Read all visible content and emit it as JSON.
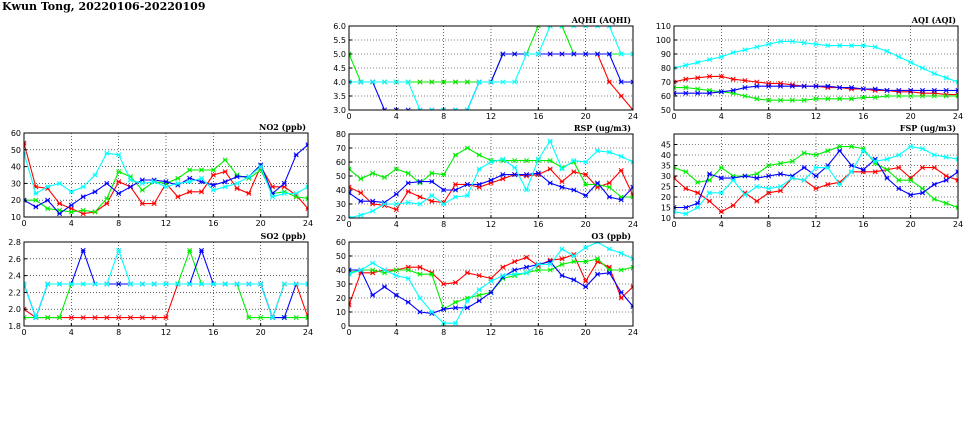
{
  "page": {
    "title": "Kwun Tong, 20220106-20220109"
  },
  "colors": {
    "series": [
      "#ff0000",
      "#00ee00",
      "#0000ff",
      "#00ffff"
    ],
    "grid": "#000000"
  },
  "chart_data": [
    {
      "id": "no2",
      "type": "line",
      "title": "NO2 (ppb)",
      "xlim": [
        0,
        24
      ],
      "ylim": [
        10,
        60
      ],
      "xticks": [
        0,
        4,
        8,
        12,
        16,
        20,
        24
      ],
      "yticks": [
        10,
        20,
        30,
        40,
        50,
        60
      ],
      "x": [
        0,
        1,
        2,
        3,
        4,
        5,
        6,
        7,
        8,
        9,
        10,
        11,
        12,
        13,
        14,
        15,
        16,
        17,
        18,
        19,
        20,
        21,
        22,
        23,
        24
      ],
      "series": [
        {
          "values": [
            54,
            28,
            27,
            18,
            15,
            12,
            13,
            18,
            31,
            28,
            18,
            18,
            30,
            22,
            25,
            25,
            35,
            37,
            27,
            24,
            40,
            28,
            28,
            23,
            15
          ]
        },
        {
          "values": [
            20,
            20,
            15,
            14,
            13,
            14,
            13,
            21,
            37,
            34,
            26,
            31,
            30,
            33,
            38,
            38,
            38,
            44,
            35,
            33,
            38,
            24,
            25,
            22,
            21
          ]
        },
        {
          "values": [
            20,
            16,
            20,
            12,
            17,
            22,
            25,
            30,
            24,
            28,
            32,
            32,
            31,
            29,
            33,
            31,
            29,
            31,
            34,
            34,
            41,
            24,
            30,
            47,
            53
          ]
        },
        {
          "values": [
            48,
            24,
            28,
            30,
            25,
            28,
            35,
            48,
            47,
            32,
            30,
            31,
            28,
            30,
            31,
            33,
            26,
            28,
            30,
            34,
            40,
            22,
            24,
            24,
            28
          ]
        }
      ]
    },
    {
      "id": "so2",
      "type": "line",
      "title": "SO2 (ppb)",
      "xlim": [
        0,
        24
      ],
      "ylim": [
        1.8,
        2.8
      ],
      "xticks": [
        0,
        4,
        8,
        12,
        16,
        20,
        24
      ],
      "yticks": [
        1.8,
        2.0,
        2.2,
        2.4,
        2.6,
        2.8
      ],
      "x": [
        0,
        1,
        2,
        3,
        4,
        5,
        6,
        7,
        8,
        9,
        10,
        11,
        12,
        13,
        14,
        15,
        16,
        17,
        18,
        19,
        20,
        21,
        22,
        23,
        24
      ],
      "series": [
        {
          "values": [
            2.0,
            1.9,
            1.9,
            1.9,
            1.9,
            1.9,
            1.9,
            1.9,
            1.9,
            1.9,
            1.9,
            1.9,
            1.9,
            2.3,
            2.3,
            2.3,
            2.3,
            2.3,
            2.3,
            2.3,
            2.3,
            1.9,
            2.3,
            2.3,
            1.9
          ]
        },
        {
          "values": [
            1.9,
            1.9,
            1.9,
            1.9,
            2.3,
            2.3,
            2.3,
            2.3,
            2.3,
            2.3,
            2.3,
            2.3,
            2.3,
            2.3,
            2.7,
            2.3,
            2.3,
            2.3,
            2.3,
            1.9,
            1.9,
            1.9,
            1.9,
            1.9,
            1.9
          ]
        },
        {
          "values": [
            2.3,
            1.9,
            2.3,
            2.3,
            2.3,
            2.7,
            2.3,
            2.3,
            2.3,
            2.3,
            2.3,
            2.3,
            2.3,
            2.3,
            2.3,
            2.7,
            2.3,
            2.3,
            2.3,
            2.3,
            2.3,
            1.9,
            1.9,
            2.3,
            2.3
          ]
        },
        {
          "values": [
            2.3,
            1.9,
            2.3,
            2.3,
            2.3,
            2.3,
            2.3,
            2.3,
            2.7,
            2.3,
            2.3,
            2.3,
            2.3,
            2.3,
            2.3,
            2.3,
            2.3,
            2.3,
            2.3,
            2.3,
            2.3,
            1.9,
            2.3,
            2.3,
            2.3
          ]
        }
      ]
    },
    {
      "id": "aqhi",
      "type": "line",
      "title": "AQHI (AQHI)",
      "xlim": [
        0,
        24
      ],
      "ylim": [
        3.0,
        6.0
      ],
      "xticks": [
        0,
        4,
        8,
        12,
        16,
        20,
        24
      ],
      "yticks": [
        3.0,
        3.5,
        4.0,
        4.5,
        5.0,
        5.5,
        6.0
      ],
      "x": [
        0,
        1,
        2,
        3,
        4,
        5,
        6,
        7,
        8,
        9,
        10,
        11,
        12,
        13,
        14,
        15,
        16,
        17,
        18,
        19,
        20,
        21,
        22,
        23,
        24
      ],
      "series": [
        {
          "values": [
            4,
            4,
            4,
            4,
            4,
            4,
            4,
            4,
            4,
            4,
            4,
            4,
            4,
            5,
            5,
            5,
            5,
            5,
            5,
            5,
            5,
            5,
            4,
            3.5,
            3
          ]
        },
        {
          "values": [
            5,
            4,
            4,
            4,
            4,
            4,
            4,
            4,
            4,
            4,
            4,
            4,
            4,
            5,
            5,
            5,
            6,
            6,
            6,
            5,
            5,
            5,
            5,
            5,
            5
          ]
        },
        {
          "values": [
            4,
            4,
            4,
            3,
            3,
            3,
            3,
            3,
            3,
            3,
            3,
            4,
            4,
            5,
            5,
            5,
            5,
            5,
            5,
            5,
            5,
            5,
            5,
            4,
            4
          ]
        },
        {
          "values": [
            4,
            4,
            4,
            4,
            4,
            4,
            3,
            3,
            3,
            3,
            3,
            4,
            4,
            4,
            4,
            5,
            5,
            6,
            6,
            6,
            6,
            6,
            6,
            5,
            5
          ]
        }
      ]
    },
    {
      "id": "rsp",
      "type": "line",
      "title": "RSP (ug/m3)",
      "xlim": [
        0,
        24
      ],
      "ylim": [
        20,
        80
      ],
      "xticks": [
        0,
        4,
        8,
        12,
        16,
        20,
        24
      ],
      "yticks": [
        20,
        30,
        40,
        50,
        60,
        70,
        80
      ],
      "x": [
        0,
        1,
        2,
        3,
        4,
        5,
        6,
        7,
        8,
        9,
        10,
        11,
        12,
        13,
        14,
        15,
        16,
        17,
        18,
        19,
        20,
        21,
        22,
        23,
        24
      ],
      "series": [
        {
          "values": [
            42,
            38,
            30,
            29,
            26,
            39,
            35,
            32,
            31,
            44,
            44,
            42,
            45,
            48,
            51,
            50,
            51,
            55,
            46,
            53,
            51,
            42,
            45,
            54,
            36
          ]
        },
        {
          "values": [
            55,
            48,
            52,
            49,
            55,
            52,
            45,
            52,
            51,
            65,
            70,
            65,
            61,
            61,
            61,
            61,
            61,
            61,
            56,
            60,
            44,
            44,
            42,
            35,
            35
          ]
        },
        {
          "values": [
            38,
            32,
            32,
            31,
            37,
            45,
            46,
            46,
            40,
            40,
            44,
            44,
            47,
            51,
            51,
            51,
            52,
            45,
            42,
            40,
            36,
            45,
            35,
            33,
            42
          ]
        },
        {
          "values": [
            20,
            22,
            25,
            30,
            30,
            31,
            30,
            36,
            30,
            35,
            36,
            55,
            60,
            62,
            56,
            40,
            62,
            75,
            55,
            61,
            60,
            68,
            67,
            64,
            60
          ]
        }
      ]
    },
    {
      "id": "o3",
      "type": "line",
      "title": "O3 (ppb)",
      "xlim": [
        0,
        24
      ],
      "ylim": [
        0,
        60
      ],
      "xticks": [
        0,
        4,
        8,
        12,
        16,
        20,
        24
      ],
      "yticks": [
        0,
        10,
        20,
        30,
        40,
        50,
        60
      ],
      "x": [
        0,
        1,
        2,
        3,
        4,
        5,
        6,
        7,
        8,
        9,
        10,
        11,
        12,
        13,
        14,
        15,
        16,
        17,
        18,
        19,
        20,
        21,
        22,
        23,
        24
      ],
      "series": [
        {
          "values": [
            15,
            38,
            38,
            40,
            40,
            42,
            42,
            38,
            30,
            31,
            38,
            36,
            34,
            42,
            46,
            49,
            43,
            47,
            48,
            51,
            32,
            46,
            42,
            20,
            28
          ]
        },
        {
          "values": [
            38,
            40,
            40,
            38,
            40,
            40,
            37,
            37,
            12,
            17,
            20,
            22,
            24,
            34,
            36,
            38,
            40,
            40,
            44,
            46,
            46,
            48,
            40,
            40,
            42
          ]
        },
        {
          "values": [
            40,
            40,
            22,
            28,
            22,
            17,
            10,
            9,
            12,
            13,
            13,
            18,
            24,
            35,
            40,
            42,
            44,
            46,
            36,
            33,
            28,
            37,
            38,
            24,
            14
          ]
        },
        {
          "values": [
            37,
            40,
            45,
            40,
            36,
            34,
            20,
            10,
            2,
            2,
            18,
            26,
            32,
            36,
            37,
            38,
            44,
            44,
            55,
            50,
            56,
            60,
            55,
            52,
            48
          ]
        }
      ]
    },
    {
      "id": "aqi",
      "type": "line",
      "title": "AQI (AQI)",
      "xlim": [
        0,
        24
      ],
      "ylim": [
        50,
        110
      ],
      "xticks": [
        0,
        4,
        8,
        12,
        16,
        20,
        24
      ],
      "yticks": [
        50,
        60,
        70,
        80,
        90,
        100,
        110
      ],
      "x": [
        0,
        1,
        2,
        3,
        4,
        5,
        6,
        7,
        8,
        9,
        10,
        11,
        12,
        13,
        14,
        15,
        16,
        17,
        18,
        19,
        20,
        21,
        22,
        23,
        24
      ],
      "series": [
        {
          "values": [
            70,
            72,
            73,
            74,
            74,
            72,
            71,
            70,
            69,
            69,
            68,
            67,
            67,
            66,
            66,
            65,
            65,
            64,
            64,
            63,
            63,
            62,
            62,
            61,
            61
          ]
        },
        {
          "values": [
            66,
            66,
            65,
            64,
            63,
            62,
            60,
            58,
            57,
            57,
            57,
            57,
            58,
            58,
            58,
            58,
            59,
            59,
            60,
            60,
            60,
            60,
            60,
            60,
            60
          ]
        },
        {
          "values": [
            62,
            62,
            62,
            62,
            63,
            64,
            66,
            67,
            67,
            67,
            67,
            67,
            67,
            67,
            66,
            66,
            65,
            65,
            64,
            64,
            64,
            64,
            64,
            64,
            64
          ]
        },
        {
          "values": [
            80,
            82,
            84,
            86,
            88,
            91,
            93,
            95,
            97,
            99,
            99,
            98,
            97,
            96,
            96,
            96,
            96,
            95,
            92,
            88,
            84,
            80,
            76,
            73,
            70
          ]
        }
      ]
    },
    {
      "id": "fsp",
      "type": "line",
      "title": "FSP (ug/m3)",
      "xlim": [
        0,
        24
      ],
      "ylim": [
        10,
        50
      ],
      "xticks": [
        0,
        4,
        8,
        12,
        16,
        20,
        24
      ],
      "yticks": [
        10,
        15,
        20,
        25,
        30,
        35,
        40,
        45
      ],
      "x": [
        0,
        1,
        2,
        3,
        4,
        5,
        6,
        7,
        8,
        9,
        10,
        11,
        12,
        13,
        14,
        15,
        16,
        17,
        18,
        19,
        20,
        21,
        22,
        23,
        24
      ],
      "series": [
        {
          "values": [
            29,
            24,
            22,
            18,
            13,
            16,
            22,
            18,
            22,
            23,
            29,
            28,
            24,
            26,
            27,
            32,
            32,
            32,
            33,
            34,
            29,
            34,
            34,
            30,
            28
          ]
        },
        {
          "values": [
            34,
            32,
            27,
            28,
            34,
            30,
            30,
            31,
            35,
            36,
            37,
            41,
            40,
            42,
            44,
            44,
            43,
            36,
            33,
            28,
            28,
            24,
            19,
            17,
            15
          ]
        },
        {
          "values": [
            15,
            15,
            17,
            31,
            29,
            29,
            30,
            29,
            30,
            31,
            30,
            34,
            30,
            35,
            42,
            35,
            33,
            38,
            29,
            24,
            21,
            22,
            26,
            28,
            32
          ]
        },
        {
          "values": [
            13,
            12,
            15,
            22,
            22,
            28,
            21,
            25,
            24,
            25,
            29,
            28,
            34,
            34,
            26,
            32,
            42,
            37,
            38,
            40,
            44,
            43,
            40,
            39,
            38
          ]
        }
      ]
    }
  ]
}
